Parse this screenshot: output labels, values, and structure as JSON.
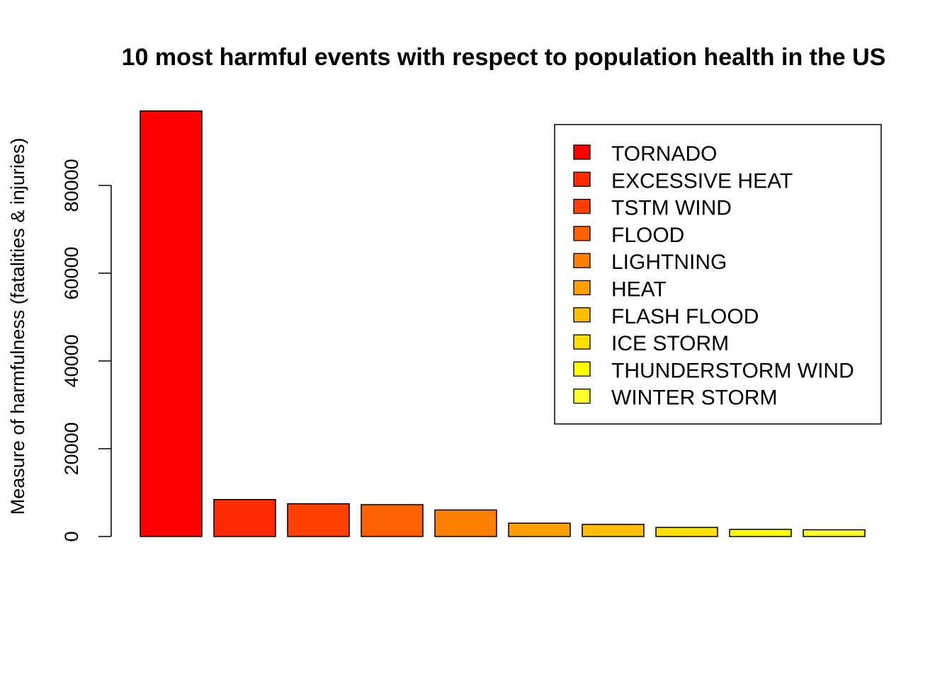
{
  "chart_data": {
    "type": "bar",
    "title": "10 most harmful events with respect to population health in the US",
    "xlabel": "",
    "ylabel": "Measure of harmfulness (fatalities & injuries)",
    "categories": [
      "TORNADO",
      "EXCESSIVE HEAT",
      "TSTM WIND",
      "FLOOD",
      "LIGHTNING",
      "HEAT",
      "FLASH FLOOD",
      "ICE STORM",
      "THUNDERSTORM WIND",
      "WINTER STORM"
    ],
    "values": [
      96979,
      8428,
      7461,
      7259,
      6046,
      3037,
      2755,
      2064,
      1621,
      1527
    ],
    "colors": [
      "#FF0000",
      "#FF2A00",
      "#FF4000",
      "#FF6000",
      "#FF8000",
      "#FF9F00",
      "#FFBF00",
      "#FFDF00",
      "#FFFF00",
      "#FFFF2A"
    ],
    "ylim": [
      0,
      96979
    ],
    "yticks": [
      0,
      20000,
      40000,
      60000,
      80000
    ],
    "ytick_labels": [
      "0",
      "20000",
      "40000",
      "60000",
      "80000"
    ],
    "legend_position": "top-right",
    "grid": false
  }
}
